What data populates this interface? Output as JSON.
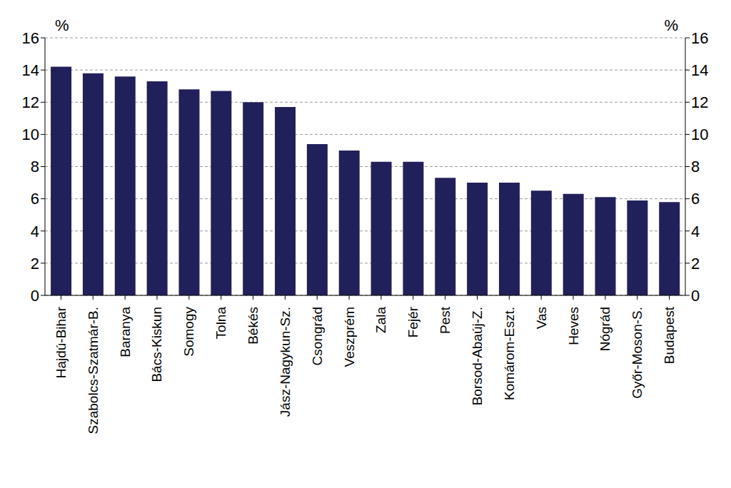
{
  "chart_data": {
    "type": "bar",
    "ylabel": "%",
    "y2label": "%",
    "categories": [
      "Hajdú-Bihar",
      "Szabolcs-Szatmár-B.",
      "Baranya",
      "Bács-Kiskun",
      "Somogy",
      "Tolna",
      "Békés",
      "Jász-Nagykun-Sz.",
      "Csongrád",
      "Veszprém",
      "Zala",
      "Fejér",
      "Pest",
      "Borsod-Abaúj-Z.",
      "Komárom-Eszt.",
      "Vas",
      "Heves",
      "Nógrád",
      "Győr-Moson-S.",
      "Budapest"
    ],
    "values": [
      14.2,
      13.8,
      13.6,
      13.3,
      12.8,
      12.7,
      12.0,
      11.7,
      9.4,
      9.0,
      8.3,
      8.3,
      7.3,
      7.0,
      7.0,
      6.5,
      6.3,
      6.1,
      5.9,
      5.8
    ],
    "color": "#22205a",
    "ylim": [
      0,
      16
    ],
    "yticks": [
      0,
      2,
      4,
      6,
      8,
      10,
      12,
      14,
      16
    ],
    "y2lim": [
      0,
      16
    ],
    "y2ticks": [
      0,
      2,
      4,
      6,
      8,
      10,
      12,
      14,
      16
    ],
    "grid": true
  }
}
